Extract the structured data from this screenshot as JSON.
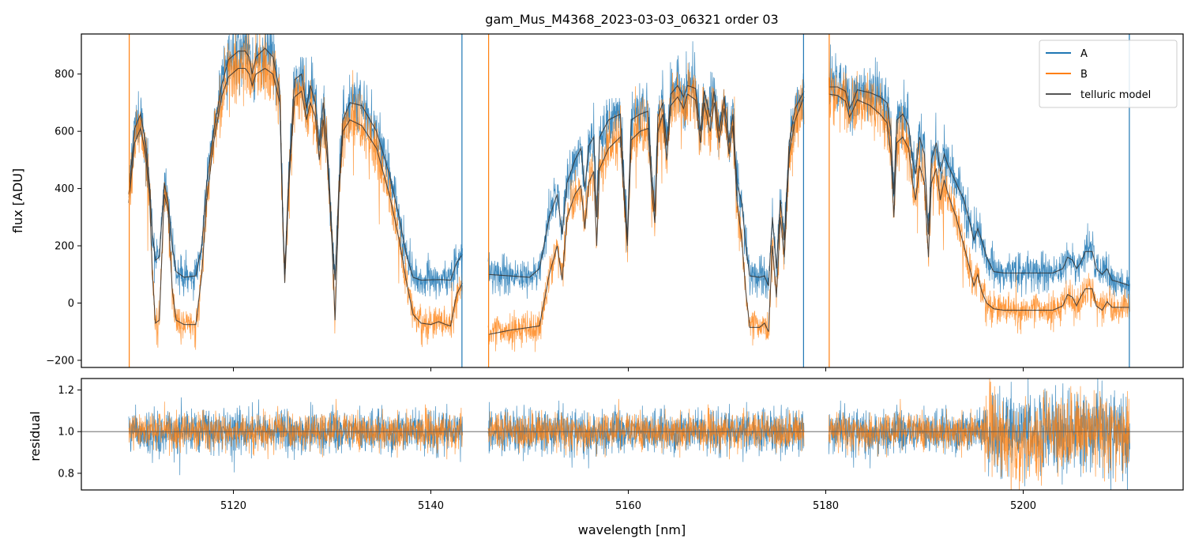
{
  "chart_data": {
    "type": "line",
    "title": "gam_Mus_M4368_2023-03-03_06321  order 03",
    "xlabel": "wavelength [nm]",
    "xlim": [
      5104.6,
      5216.2
    ],
    "xticks": [
      "5120",
      "5140",
      "5160",
      "5180",
      "5200"
    ],
    "xtick_values": [
      5120,
      5140,
      5160,
      5180,
      5200
    ],
    "colors": {
      "A": "#1f77b4",
      "B": "#ff7f0e",
      "model": "#333333"
    },
    "legend": {
      "position": "top-right",
      "entries": [
        {
          "label": "A",
          "series": "A"
        },
        {
          "label": "B",
          "series": "B"
        },
        {
          "label": "telluric model",
          "series": "model"
        }
      ]
    },
    "segments": [
      [
        5109.4,
        5143.2
      ],
      [
        5145.8,
        5177.8
      ],
      [
        5180.3,
        5210.8
      ]
    ],
    "flux_panel": {
      "ylabel": "flux [ADU]",
      "ylim": [
        -225,
        940
      ],
      "yticks": [
        "800",
        "600",
        "400",
        "200",
        "0",
        "−200"
      ],
      "ytick_values": [
        800,
        600,
        400,
        200,
        0,
        -200
      ],
      "model_A_knots": [
        [
          5109.4,
          380
        ],
        [
          5110,
          610
        ],
        [
          5110.6,
          660
        ],
        [
          5111.1,
          560
        ],
        [
          5111.5,
          420
        ],
        [
          5111.8,
          240
        ],
        [
          5112.1,
          150
        ],
        [
          5112.5,
          160
        ],
        [
          5113,
          420
        ],
        [
          5113.4,
          350
        ],
        [
          5113.8,
          200
        ],
        [
          5114.2,
          110
        ],
        [
          5115,
          90
        ],
        [
          5116.2,
          95
        ],
        [
          5116.8,
          200
        ],
        [
          5117.3,
          420
        ],
        [
          5118,
          600
        ],
        [
          5118.8,
          760
        ],
        [
          5119.5,
          850
        ],
        [
          5120.5,
          880
        ],
        [
          5121.2,
          880
        ],
        [
          5121.6,
          860
        ],
        [
          5121.9,
          800
        ],
        [
          5122.3,
          860
        ],
        [
          5123.2,
          890
        ],
        [
          5124,
          860
        ],
        [
          5124.7,
          740
        ],
        [
          5125,
          300
        ],
        [
          5125.2,
          100
        ],
        [
          5125.6,
          440
        ],
        [
          5126.2,
          780
        ],
        [
          5126.9,
          800
        ],
        [
          5127.4,
          680
        ],
        [
          5127.8,
          760
        ],
        [
          5128.3,
          700
        ],
        [
          5128.7,
          550
        ],
        [
          5129.1,
          700
        ],
        [
          5129.5,
          560
        ],
        [
          5130,
          230
        ],
        [
          5130.3,
          80
        ],
        [
          5130.7,
          420
        ],
        [
          5131.1,
          640
        ],
        [
          5131.8,
          700
        ],
        [
          5133,
          690
        ],
        [
          5134.5,
          600
        ],
        [
          5135.8,
          450
        ],
        [
          5136.8,
          300
        ],
        [
          5137.5,
          170
        ],
        [
          5138.2,
          90
        ],
        [
          5139,
          80
        ],
        [
          5141,
          82
        ],
        [
          5142,
          80
        ],
        [
          5142.6,
          140
        ],
        [
          5143.2,
          170
        ]
      ],
      "model_B_knots": [
        [
          5109.4,
          350
        ],
        [
          5110,
          560
        ],
        [
          5110.6,
          610
        ],
        [
          5111.1,
          520
        ],
        [
          5111.5,
          380
        ],
        [
          5111.8,
          100
        ],
        [
          5112.1,
          -70
        ],
        [
          5112.5,
          -60
        ],
        [
          5113,
          380
        ],
        [
          5113.4,
          320
        ],
        [
          5113.8,
          50
        ],
        [
          5114.2,
          -60
        ],
        [
          5115,
          -75
        ],
        [
          5116.2,
          -75
        ],
        [
          5116.8,
          100
        ],
        [
          5117.3,
          360
        ],
        [
          5118,
          560
        ],
        [
          5118.8,
          720
        ],
        [
          5119.5,
          790
        ],
        [
          5120.5,
          820
        ],
        [
          5121.2,
          820
        ],
        [
          5121.6,
          800
        ],
        [
          5121.9,
          760
        ],
        [
          5122.3,
          800
        ],
        [
          5123.2,
          820
        ],
        [
          5124,
          800
        ],
        [
          5124.7,
          700
        ],
        [
          5125,
          300
        ],
        [
          5125.2,
          70
        ],
        [
          5125.6,
          400
        ],
        [
          5126.2,
          720
        ],
        [
          5126.9,
          740
        ],
        [
          5127.4,
          640
        ],
        [
          5127.8,
          700
        ],
        [
          5128.3,
          650
        ],
        [
          5128.7,
          500
        ],
        [
          5129.1,
          640
        ],
        [
          5129.5,
          510
        ],
        [
          5130,
          200
        ],
        [
          5130.3,
          -60
        ],
        [
          5130.7,
          380
        ],
        [
          5131.1,
          600
        ],
        [
          5131.8,
          640
        ],
        [
          5133,
          620
        ],
        [
          5134.5,
          540
        ],
        [
          5135.8,
          380
        ],
        [
          5136.8,
          220
        ],
        [
          5137.5,
          80
        ],
        [
          5138.2,
          -40
        ],
        [
          5139,
          -70
        ],
        [
          5140,
          -75
        ],
        [
          5140.8,
          -65
        ],
        [
          5141.5,
          -75
        ],
        [
          5142,
          -80
        ],
        [
          5142.6,
          30
        ],
        [
          5143.2,
          70
        ]
      ],
      "model_A2_knots": [
        [
          5145.8,
          100
        ],
        [
          5148,
          95
        ],
        [
          5150,
          90
        ],
        [
          5151,
          120
        ],
        [
          5152,
          300
        ],
        [
          5152.8,
          380
        ],
        [
          5153.3,
          240
        ],
        [
          5153.8,
          420
        ],
        [
          5154.6,
          500
        ],
        [
          5155.2,
          540
        ],
        [
          5155.6,
          400
        ],
        [
          5156,
          550
        ],
        [
          5156.5,
          580
        ],
        [
          5156.8,
          300
        ],
        [
          5157.1,
          580
        ],
        [
          5158,
          640
        ],
        [
          5159.2,
          660
        ],
        [
          5159.6,
          400
        ],
        [
          5159.9,
          230
        ],
        [
          5160.3,
          640
        ],
        [
          5161.2,
          660
        ],
        [
          5162,
          670
        ],
        [
          5162.4,
          440
        ],
        [
          5162.7,
          320
        ],
        [
          5163,
          650
        ],
        [
          5163.5,
          700
        ],
        [
          5163.9,
          550
        ],
        [
          5164.3,
          730
        ],
        [
          5165,
          760
        ],
        [
          5165.6,
          720
        ],
        [
          5166,
          760
        ],
        [
          5166.8,
          750
        ],
        [
          5167.3,
          600
        ],
        [
          5167.7,
          740
        ],
        [
          5168.3,
          650
        ],
        [
          5168.7,
          740
        ],
        [
          5169.2,
          600
        ],
        [
          5169.7,
          720
        ],
        [
          5170.2,
          560
        ],
        [
          5170.6,
          660
        ],
        [
          5171,
          420
        ],
        [
          5171.5,
          350
        ],
        [
          5171.9,
          200
        ],
        [
          5172.3,
          95
        ],
        [
          5173.3,
          90
        ],
        [
          5173.8,
          95
        ],
        [
          5174.2,
          60
        ],
        [
          5174.6,
          300
        ],
        [
          5175,
          120
        ],
        [
          5175.4,
          360
        ],
        [
          5175.8,
          220
        ],
        [
          5176.3,
          560
        ],
        [
          5176.9,
          680
        ],
        [
          5177.8,
          740
        ]
      ],
      "model_B2_knots": [
        [
          5145.8,
          -110
        ],
        [
          5148,
          -95
        ],
        [
          5150,
          -85
        ],
        [
          5151,
          -80
        ],
        [
          5152,
          100
        ],
        [
          5152.8,
          200
        ],
        [
          5153.3,
          80
        ],
        [
          5153.8,
          300
        ],
        [
          5154.6,
          380
        ],
        [
          5155.2,
          410
        ],
        [
          5155.6,
          260
        ],
        [
          5156,
          420
        ],
        [
          5156.5,
          460
        ],
        [
          5156.8,
          200
        ],
        [
          5157.1,
          470
        ],
        [
          5158,
          540
        ],
        [
          5159.2,
          580
        ],
        [
          5159.6,
          350
        ],
        [
          5159.9,
          200
        ],
        [
          5160.3,
          570
        ],
        [
          5161.2,
          600
        ],
        [
          5162,
          610
        ],
        [
          5162.4,
          380
        ],
        [
          5162.7,
          280
        ],
        [
          5163,
          600
        ],
        [
          5163.5,
          660
        ],
        [
          5163.9,
          500
        ],
        [
          5164.3,
          690
        ],
        [
          5165,
          720
        ],
        [
          5165.6,
          680
        ],
        [
          5166,
          730
        ],
        [
          5166.8,
          710
        ],
        [
          5167.3,
          560
        ],
        [
          5167.7,
          700
        ],
        [
          5168.3,
          600
        ],
        [
          5168.7,
          700
        ],
        [
          5169.2,
          560
        ],
        [
          5169.7,
          680
        ],
        [
          5170.2,
          520
        ],
        [
          5170.6,
          620
        ],
        [
          5171,
          360
        ],
        [
          5171.5,
          220
        ],
        [
          5171.9,
          40
        ],
        [
          5172.3,
          -85
        ],
        [
          5173.3,
          -85
        ],
        [
          5173.8,
          -70
        ],
        [
          5174.2,
          -100
        ],
        [
          5174.6,
          200
        ],
        [
          5175,
          20
        ],
        [
          5175.4,
          300
        ],
        [
          5175.8,
          160
        ],
        [
          5176.3,
          520
        ],
        [
          5176.9,
          640
        ],
        [
          5177.8,
          720
        ]
      ],
      "model_A3_knots": [
        [
          5180.3,
          755
        ],
        [
          5181.2,
          755
        ],
        [
          5182,
          740
        ],
        [
          5182.4,
          680
        ],
        [
          5182.7,
          700
        ],
        [
          5183.2,
          745
        ],
        [
          5184.5,
          735
        ],
        [
          5185.5,
          720
        ],
        [
          5186.2,
          700
        ],
        [
          5186.6,
          600
        ],
        [
          5186.9,
          380
        ],
        [
          5187.2,
          640
        ],
        [
          5187.8,
          660
        ],
        [
          5188.4,
          620
        ],
        [
          5188.8,
          500
        ],
        [
          5189.1,
          450
        ],
        [
          5189.5,
          580
        ],
        [
          5190,
          520
        ],
        [
          5190.4,
          240
        ],
        [
          5190.7,
          500
        ],
        [
          5191.2,
          560
        ],
        [
          5191.6,
          460
        ],
        [
          5192,
          520
        ],
        [
          5192.4,
          480
        ],
        [
          5193.2,
          420
        ],
        [
          5194,
          360
        ],
        [
          5194.6,
          280
        ],
        [
          5195,
          220
        ],
        [
          5195.4,
          260
        ],
        [
          5195.8,
          220
        ],
        [
          5196.3,
          160
        ],
        [
          5197,
          110
        ],
        [
          5198,
          105
        ],
        [
          5203,
          105
        ],
        [
          5204,
          120
        ],
        [
          5204.5,
          160
        ],
        [
          5205,
          150
        ],
        [
          5205.4,
          120
        ],
        [
          5205.8,
          140
        ],
        [
          5206.3,
          180
        ],
        [
          5207,
          180
        ],
        [
          5207.4,
          120
        ],
        [
          5208,
          100
        ],
        [
          5208.5,
          120
        ],
        [
          5209,
          80
        ],
        [
          5210,
          70
        ],
        [
          5210.8,
          60
        ]
      ],
      "model_B3_knots": [
        [
          5180.3,
          730
        ],
        [
          5181.2,
          725
        ],
        [
          5182,
          705
        ],
        [
          5182.4,
          650
        ],
        [
          5182.7,
          670
        ],
        [
          5183.2,
          710
        ],
        [
          5184.5,
          690
        ],
        [
          5185.5,
          660
        ],
        [
          5186.2,
          630
        ],
        [
          5186.6,
          520
        ],
        [
          5186.9,
          300
        ],
        [
          5187.2,
          560
        ],
        [
          5187.8,
          580
        ],
        [
          5188.4,
          540
        ],
        [
          5188.8,
          420
        ],
        [
          5189.1,
          360
        ],
        [
          5189.5,
          480
        ],
        [
          5190,
          420
        ],
        [
          5190.4,
          160
        ],
        [
          5190.7,
          420
        ],
        [
          5191.2,
          470
        ],
        [
          5191.6,
          360
        ],
        [
          5192,
          430
        ],
        [
          5192.4,
          380
        ],
        [
          5193.2,
          300
        ],
        [
          5194,
          200
        ],
        [
          5194.6,
          120
        ],
        [
          5195,
          60
        ],
        [
          5195.4,
          100
        ],
        [
          5195.8,
          40
        ],
        [
          5196.3,
          0
        ],
        [
          5197,
          -20
        ],
        [
          5198,
          -25
        ],
        [
          5203,
          -25
        ],
        [
          5204,
          -10
        ],
        [
          5204.5,
          30
        ],
        [
          5205,
          20
        ],
        [
          5205.4,
          -10
        ],
        [
          5205.8,
          20
        ],
        [
          5206.3,
          50
        ],
        [
          5207,
          50
        ],
        [
          5207.4,
          -10
        ],
        [
          5208,
          -25
        ],
        [
          5208.5,
          5
        ],
        [
          5209,
          -15
        ],
        [
          5210,
          -15
        ],
        [
          5210.8,
          -15
        ]
      ],
      "noise_A": 50,
      "noise_B": 55
    },
    "residual_panel": {
      "ylabel": "residual",
      "ylim": [
        0.72,
        1.255
      ],
      "yticks": [
        "1.2",
        "1.0",
        "0.8"
      ],
      "ytick_values": [
        1.2,
        1.0,
        0.8
      ],
      "reference_line": 1.0,
      "noise_A": 0.065,
      "noise_B": 0.055,
      "noisy_region": [
        5196,
        5210.8
      ]
    }
  }
}
